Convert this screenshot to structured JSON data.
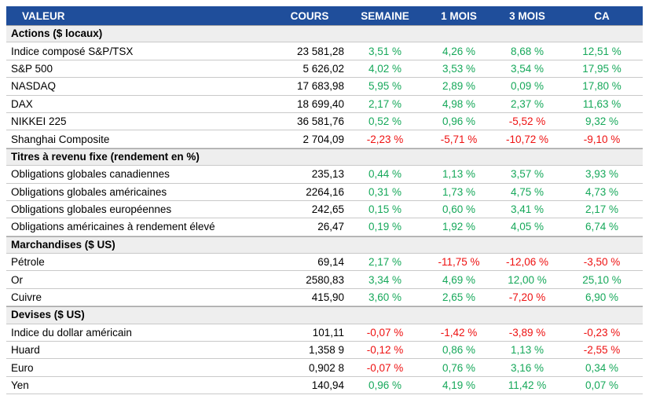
{
  "colors": {
    "header_bg": "#1F4E9B",
    "header_text": "#FFFFFF",
    "section_bg": "#EEEEEE",
    "section_border": "#A6A6A6",
    "row_border": "#C9C9C9",
    "text": "#000000",
    "positive": "#16A85A",
    "negative": "#EE1111"
  },
  "chart_data": {
    "type": "table",
    "columns": [
      "VALEUR",
      "COURS",
      "SEMAINE",
      "1 MOIS",
      "3 MOIS",
      "CA"
    ],
    "sections": [
      {
        "title": "Actions ($ locaux)",
        "rows": [
          {
            "label": "Indice composé S&P/TSX",
            "cours": "23 581,28",
            "pct": [
              "3,51 %",
              "4,26 %",
              "8,68 %",
              "12,51 %"
            ]
          },
          {
            "label": "S&P 500",
            "cours": "5 626,02",
            "pct": [
              "4,02 %",
              "3,53 %",
              "3,54 %",
              "17,95 %"
            ]
          },
          {
            "label": "NASDAQ",
            "cours": "17 683,98",
            "pct": [
              "5,95 %",
              "2,89 %",
              "0,09 %",
              "17,80 %"
            ]
          },
          {
            "label": "DAX",
            "cours": "18 699,40",
            "pct": [
              "2,17 %",
              "4,98 %",
              "2,37 %",
              "11,63 %"
            ]
          },
          {
            "label": "NIKKEI 225",
            "cours": "36 581,76",
            "pct": [
              "0,52 %",
              "0,96 %",
              "-5,52 %",
              "9,32 %"
            ]
          },
          {
            "label": "Shanghai Composite",
            "cours": "2 704,09",
            "pct": [
              "-2,23 %",
              "-5,71 %",
              "-10,72 %",
              "-9,10 %"
            ]
          }
        ]
      },
      {
        "title": "Titres à revenu fixe (rendement en %)",
        "rows": [
          {
            "label": "Obligations globales canadiennes",
            "cours": "235,13",
            "pct": [
              "0,44 %",
              "1,13 %",
              "3,57 %",
              "3,93 %"
            ]
          },
          {
            "label": "Obligations globales américaines",
            "cours": "2264,16",
            "pct": [
              "0,31 %",
              "1,73 %",
              "4,75 %",
              "4,73 %"
            ]
          },
          {
            "label": "Obligations globales européennes",
            "cours": "242,65",
            "pct": [
              "0,15 %",
              "0,60 %",
              "3,41 %",
              "2,17 %"
            ]
          },
          {
            "label": "Obligations américaines à rendement élevé",
            "cours": "26,47",
            "pct": [
              "0,19 %",
              "1,92 %",
              "4,05 %",
              "6,74 %"
            ]
          }
        ]
      },
      {
        "title": "Marchandises ($ US)",
        "rows": [
          {
            "label": "Pétrole",
            "cours": "69,14",
            "pct": [
              "2,17 %",
              "-11,75 %",
              "-12,06 %",
              "-3,50 %"
            ]
          },
          {
            "label": "Or",
            "cours": "2580,83",
            "pct": [
              "3,34 %",
              "4,69 %",
              "12,00 %",
              "25,10 %"
            ]
          },
          {
            "label": "Cuivre",
            "cours": "415,90",
            "pct": [
              "3,60 %",
              "2,65 %",
              "-7,20 %",
              "6,90 %"
            ]
          }
        ]
      },
      {
        "title": "Devises ($ US)",
        "rows": [
          {
            "label": "Indice du dollar américain",
            "cours": "101,11",
            "pct": [
              "-0,07 %",
              "-1,42 %",
              "-3,89 %",
              "-0,23 %"
            ]
          },
          {
            "label": "Huard",
            "cours": "1,358 9",
            "pct": [
              "-0,12 %",
              "0,86 %",
              "1,13 %",
              "-2,55 %"
            ]
          },
          {
            "label": "Euro",
            "cours": "0,902 8",
            "pct": [
              "-0,07 %",
              "0,76 %",
              "3,16 %",
              "0,34 %"
            ]
          },
          {
            "label": "Yen",
            "cours": "140,94",
            "pct": [
              "0,96 %",
              "4,19 %",
              "11,42 %",
              "0,07 %"
            ]
          }
        ]
      }
    ]
  }
}
